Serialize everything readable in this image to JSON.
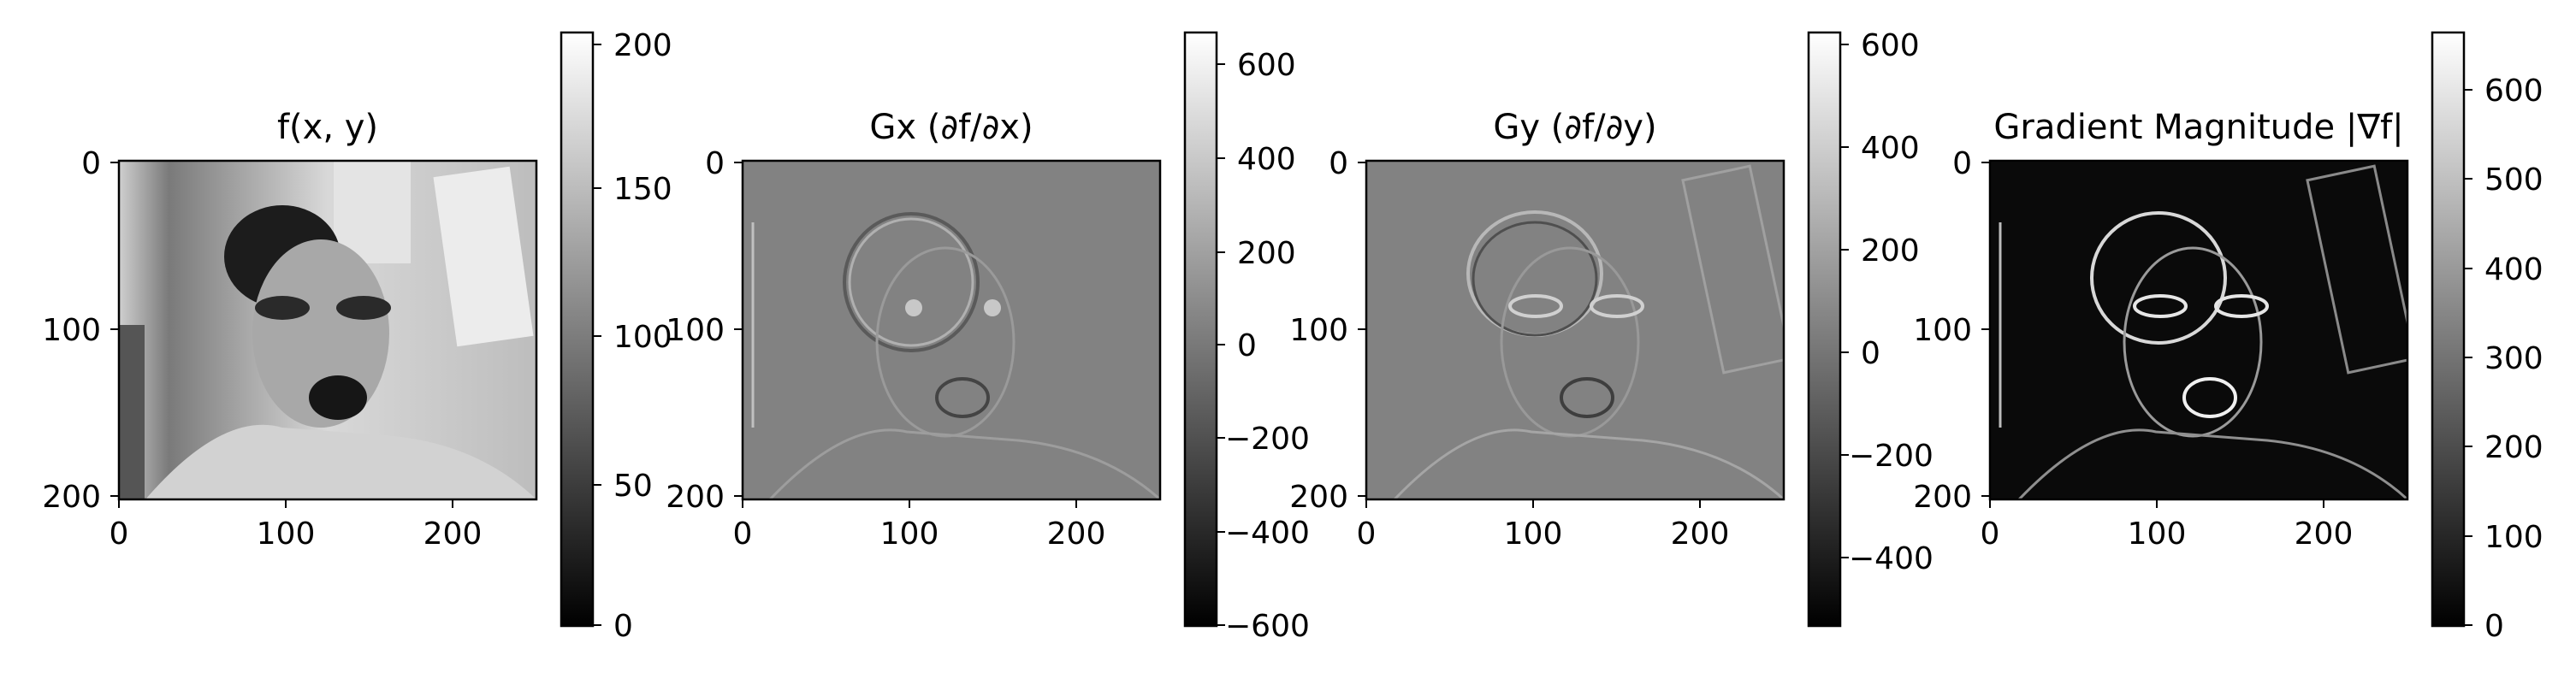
{
  "chart_data": [
    {
      "type": "heatmap",
      "title": "f(x, y)",
      "colormap": "gray",
      "image_shape": [
        201,
        250
      ],
      "xticks": [
        "0",
        "100",
        "200"
      ],
      "yticks": [
        "0",
        "100",
        "200"
      ],
      "colorbar": {
        "min": 0,
        "max": 204,
        "ticks": [
          "0",
          "50",
          "100",
          "150",
          "200"
        ]
      }
    },
    {
      "type": "heatmap",
      "title": "Gx (∂f/∂x)",
      "colormap": "gray",
      "image_shape": [
        201,
        250
      ],
      "xticks": [
        "0",
        "100",
        "200"
      ],
      "yticks": [
        "0",
        "100",
        "200"
      ],
      "colorbar": {
        "min": -660,
        "max": 660,
        "ticks": [
          "−600",
          "−400",
          "−200",
          "0",
          "200",
          "400",
          "600"
        ]
      }
    },
    {
      "type": "heatmap",
      "title": "Gy (∂f/∂y)",
      "colormap": "gray",
      "image_shape": [
        201,
        250
      ],
      "xticks": [
        "0",
        "100",
        "200"
      ],
      "yticks": [
        "0",
        "100",
        "200"
      ],
      "colorbar": {
        "min": -550,
        "max": 610,
        "ticks": [
          "−400",
          "−200",
          "0",
          "200",
          "400",
          "600"
        ]
      }
    },
    {
      "type": "heatmap",
      "title": "Gradient Magnitude |∇f|",
      "colormap": "gray",
      "image_shape": [
        201,
        250
      ],
      "xticks": [
        "0",
        "100",
        "200"
      ],
      "yticks": [
        "0",
        "100",
        "200"
      ],
      "colorbar": {
        "min": 0,
        "max": 665,
        "ticks": [
          "0",
          "100",
          "200",
          "300",
          "400",
          "500",
          "600"
        ]
      }
    }
  ]
}
